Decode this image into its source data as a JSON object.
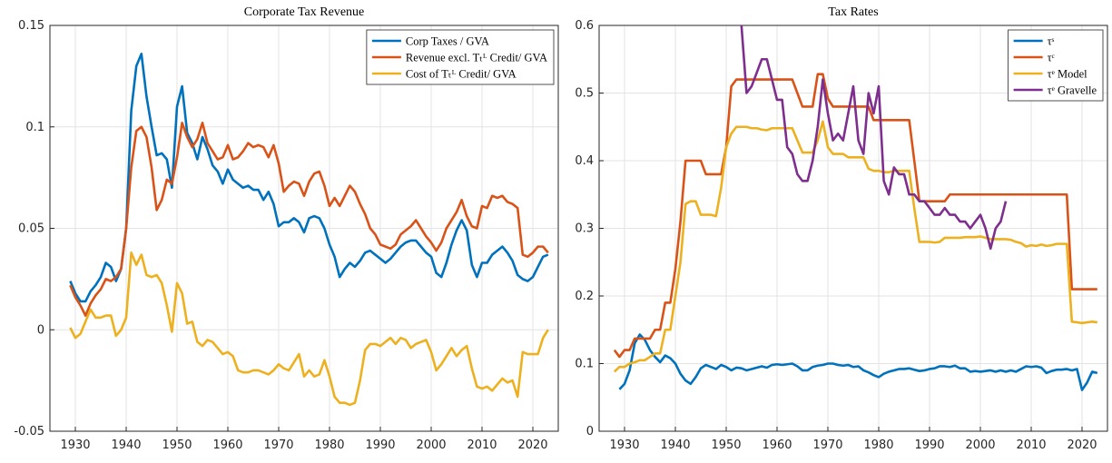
{
  "chart_data": [
    {
      "type": "line",
      "title": "Corporate Tax Revenue",
      "x": [
        1929,
        1930,
        1931,
        1932,
        1933,
        1934,
        1935,
        1936,
        1937,
        1938,
        1939,
        1940,
        1941,
        1942,
        1943,
        1944,
        1945,
        1946,
        1947,
        1948,
        1949,
        1950,
        1951,
        1952,
        1953,
        1954,
        1955,
        1956,
        1957,
        1958,
        1959,
        1960,
        1961,
        1962,
        1963,
        1964,
        1965,
        1966,
        1967,
        1968,
        1969,
        1970,
        1971,
        1972,
        1973,
        1974,
        1975,
        1976,
        1977,
        1978,
        1979,
        1980,
        1981,
        1982,
        1983,
        1984,
        1985,
        1986,
        1987,
        1988,
        1989,
        1990,
        1991,
        1992,
        1993,
        1994,
        1995,
        1996,
        1997,
        1998,
        1999,
        2000,
        2001,
        2002,
        2003,
        2004,
        2005,
        2006,
        2007,
        2008,
        2009,
        2010,
        2011,
        2012,
        2013,
        2014,
        2015,
        2016,
        2017,
        2018,
        2019,
        2020,
        2021,
        2022,
        2023
      ],
      "xlim": [
        1925,
        2025
      ],
      "xticks": [
        1930,
        1940,
        1950,
        1960,
        1970,
        1980,
        1990,
        2000,
        2010,
        2020
      ],
      "ylim": [
        -0.05,
        0.15
      ],
      "yticks": [
        -0.05,
        0,
        0.05,
        0.1,
        0.15
      ],
      "grid": true,
      "legend": "northeast",
      "series": [
        {
          "name": "Corp Taxes / GVA",
          "color": "#0072bd",
          "values": [
            0.024,
            0.018,
            0.014,
            0.014,
            0.019,
            0.022,
            0.026,
            0.033,
            0.031,
            0.024,
            0.03,
            0.05,
            0.108,
            0.13,
            0.136,
            0.115,
            0.1,
            0.086,
            0.087,
            0.084,
            0.07,
            0.11,
            0.12,
            0.097,
            0.092,
            0.084,
            0.095,
            0.089,
            0.081,
            0.078,
            0.072,
            0.079,
            0.074,
            0.072,
            0.07,
            0.071,
            0.069,
            0.069,
            0.064,
            0.068,
            0.062,
            0.051,
            0.053,
            0.053,
            0.055,
            0.053,
            0.048,
            0.055,
            0.056,
            0.055,
            0.05,
            0.042,
            0.036,
            0.026,
            0.03,
            0.033,
            0.031,
            0.034,
            0.038,
            0.039,
            0.037,
            0.035,
            0.033,
            0.035,
            0.038,
            0.041,
            0.043,
            0.044,
            0.044,
            0.041,
            0.038,
            0.036,
            0.028,
            0.026,
            0.033,
            0.042,
            0.049,
            0.054,
            0.049,
            0.032,
            0.026,
            0.033,
            0.033,
            0.037,
            0.039,
            0.041,
            0.038,
            0.034,
            0.027,
            0.025,
            0.024,
            0.026,
            0.031,
            0.036,
            0.037
          ]
        },
        {
          "name": "Revenue excl. Tₜᴸ Credit/ GVA",
          "color": "#d95319",
          "values": [
            0.022,
            0.016,
            0.012,
            0.007,
            0.013,
            0.017,
            0.02,
            0.025,
            0.024,
            0.026,
            0.03,
            0.05,
            0.08,
            0.098,
            0.1,
            0.095,
            0.08,
            0.059,
            0.064,
            0.074,
            0.072,
            0.085,
            0.102,
            0.095,
            0.09,
            0.094,
            0.102,
            0.092,
            0.088,
            0.084,
            0.085,
            0.091,
            0.084,
            0.085,
            0.088,
            0.092,
            0.09,
            0.091,
            0.09,
            0.085,
            0.091,
            0.082,
            0.068,
            0.071,
            0.073,
            0.072,
            0.066,
            0.073,
            0.077,
            0.078,
            0.071,
            0.061,
            0.065,
            0.061,
            0.066,
            0.071,
            0.068,
            0.062,
            0.057,
            0.05,
            0.047,
            0.042,
            0.041,
            0.04,
            0.042,
            0.047,
            0.049,
            0.051,
            0.054,
            0.05,
            0.046,
            0.043,
            0.039,
            0.043,
            0.05,
            0.054,
            0.058,
            0.064,
            0.056,
            0.051,
            0.05,
            0.061,
            0.06,
            0.066,
            0.065,
            0.066,
            0.063,
            0.062,
            0.06,
            0.037,
            0.036,
            0.038,
            0.041,
            0.041,
            0.038
          ]
        },
        {
          "name": "Cost of Tₜᴸ Credit/ GVA",
          "color": "#edb120",
          "values": [
            0.001,
            -0.004,
            -0.002,
            0.004,
            0.01,
            0.006,
            0.006,
            0.007,
            0.007,
            -0.003,
            0.0,
            0.006,
            0.038,
            0.032,
            0.037,
            0.027,
            0.026,
            0.027,
            0.023,
            0.012,
            -0.001,
            0.023,
            0.018,
            0.003,
            0.004,
            -0.006,
            -0.008,
            -0.005,
            -0.006,
            -0.009,
            -0.012,
            -0.011,
            -0.013,
            -0.02,
            -0.021,
            -0.021,
            -0.02,
            -0.02,
            -0.021,
            -0.022,
            -0.02,
            -0.017,
            -0.019,
            -0.02,
            -0.016,
            -0.012,
            -0.023,
            -0.02,
            -0.023,
            -0.022,
            -0.015,
            -0.023,
            -0.033,
            -0.036,
            -0.036,
            -0.037,
            -0.036,
            -0.025,
            -0.01,
            -0.007,
            -0.007,
            -0.008,
            -0.006,
            -0.004,
            -0.007,
            -0.004,
            -0.005,
            -0.009,
            -0.007,
            -0.006,
            -0.005,
            -0.011,
            -0.02,
            -0.017,
            -0.013,
            -0.009,
            -0.013,
            -0.01,
            -0.008,
            -0.019,
            -0.028,
            -0.029,
            -0.028,
            -0.03,
            -0.027,
            -0.024,
            -0.026,
            -0.025,
            -0.033,
            -0.011,
            -0.012,
            -0.012,
            -0.012,
            -0.004,
            0.0
          ]
        }
      ]
    },
    {
      "type": "line",
      "title": "Tax Rates",
      "x": [
        1928,
        1929,
        1930,
        1931,
        1932,
        1933,
        1934,
        1935,
        1936,
        1937,
        1938,
        1939,
        1940,
        1941,
        1942,
        1943,
        1944,
        1945,
        1946,
        1947,
        1948,
        1949,
        1950,
        1951,
        1952,
        1953,
        1954,
        1955,
        1956,
        1957,
        1958,
        1959,
        1960,
        1961,
        1962,
        1963,
        1964,
        1965,
        1966,
        1967,
        1968,
        1969,
        1970,
        1971,
        1972,
        1973,
        1974,
        1975,
        1976,
        1977,
        1978,
        1979,
        1980,
        1981,
        1982,
        1983,
        1984,
        1985,
        1986,
        1987,
        1988,
        1989,
        1990,
        1991,
        1992,
        1993,
        1994,
        1995,
        1996,
        1997,
        1998,
        1999,
        2000,
        2001,
        2002,
        2003,
        2004,
        2005,
        2006,
        2007,
        2008,
        2009,
        2010,
        2011,
        2012,
        2013,
        2014,
        2015,
        2016,
        2017,
        2018,
        2019,
        2020,
        2021,
        2022,
        2023
      ],
      "xlim": [
        1925,
        2025
      ],
      "xticks": [
        1930,
        1940,
        1950,
        1960,
        1970,
        1980,
        1990,
        2000,
        2010,
        2020
      ],
      "ylim": [
        0,
        0.6
      ],
      "yticks": [
        0,
        0.1,
        0.2,
        0.3,
        0.4,
        0.5,
        0.6
      ],
      "grid": true,
      "legend": "northeast",
      "series": [
        {
          "name": "τˢ",
          "color": "#0072bd",
          "values": [
            null,
            0.062,
            0.07,
            0.09,
            0.13,
            0.143,
            0.135,
            0.12,
            0.11,
            0.102,
            0.112,
            0.108,
            0.1,
            0.085,
            0.075,
            0.07,
            0.08,
            0.093,
            0.098,
            0.095,
            0.092,
            0.098,
            0.095,
            0.09,
            0.094,
            0.093,
            0.09,
            0.092,
            0.094,
            0.096,
            0.094,
            0.098,
            0.099,
            0.098,
            0.099,
            0.1,
            0.096,
            0.09,
            0.09,
            0.095,
            0.097,
            0.098,
            0.1,
            0.1,
            0.098,
            0.097,
            0.098,
            0.095,
            0.096,
            0.09,
            0.087,
            0.083,
            0.08,
            0.085,
            0.088,
            0.09,
            0.092,
            0.092,
            0.093,
            0.091,
            0.089,
            0.09,
            0.092,
            0.093,
            0.096,
            0.096,
            0.095,
            0.097,
            0.093,
            0.093,
            0.088,
            0.089,
            0.088,
            0.089,
            0.09,
            0.088,
            0.09,
            0.088,
            0.09,
            0.088,
            0.092,
            0.096,
            0.095,
            0.096,
            0.094,
            0.086,
            0.089,
            0.091,
            0.091,
            0.092,
            0.09,
            0.092,
            0.061,
            0.072,
            0.088,
            0.086
          ]
        },
        {
          "name": "τᶜ",
          "color": "#d95319",
          "values": [
            0.12,
            0.11,
            0.12,
            0.12,
            0.137,
            0.137,
            0.137,
            0.137,
            0.15,
            0.15,
            0.19,
            0.19,
            0.24,
            0.31,
            0.4,
            0.4,
            0.4,
            0.4,
            0.38,
            0.38,
            0.38,
            0.38,
            0.42,
            0.51,
            0.52,
            0.52,
            0.52,
            0.52,
            0.52,
            0.52,
            0.52,
            0.52,
            0.52,
            0.52,
            0.52,
            0.52,
            0.5,
            0.48,
            0.48,
            0.48,
            0.528,
            0.528,
            0.492,
            0.48,
            0.48,
            0.48,
            0.48,
            0.48,
            0.48,
            0.48,
            0.48,
            0.46,
            0.46,
            0.46,
            0.46,
            0.46,
            0.46,
            0.46,
            0.46,
            0.4,
            0.34,
            0.34,
            0.34,
            0.34,
            0.34,
            0.34,
            0.35,
            0.35,
            0.35,
            0.35,
            0.35,
            0.35,
            0.35,
            0.35,
            0.35,
            0.35,
            0.35,
            0.35,
            0.35,
            0.35,
            0.35,
            0.35,
            0.35,
            0.35,
            0.35,
            0.35,
            0.35,
            0.35,
            0.35,
            0.35,
            0.21,
            0.21,
            0.21,
            0.21,
            0.21,
            0.21
          ]
        },
        {
          "name": "τᵉ Model",
          "color": "#edb120",
          "values": [
            0.088,
            0.095,
            0.095,
            0.1,
            0.102,
            0.105,
            0.105,
            0.11,
            0.115,
            0.115,
            0.15,
            0.15,
            0.2,
            0.25,
            0.336,
            0.34,
            0.34,
            0.32,
            0.32,
            0.32,
            0.318,
            0.36,
            0.42,
            0.44,
            0.45,
            0.45,
            0.45,
            0.448,
            0.448,
            0.446,
            0.445,
            0.448,
            0.448,
            0.448,
            0.448,
            0.448,
            0.43,
            0.412,
            0.412,
            0.412,
            0.43,
            0.458,
            0.42,
            0.41,
            0.41,
            0.41,
            0.405,
            0.405,
            0.405,
            0.405,
            0.388,
            0.385,
            0.385,
            0.383,
            0.383,
            0.385,
            0.385,
            0.385,
            0.385,
            0.33,
            0.28,
            0.28,
            0.28,
            0.279,
            0.28,
            0.286,
            0.286,
            0.286,
            0.286,
            0.287,
            0.287,
            0.287,
            0.288,
            0.286,
            0.284,
            0.284,
            0.284,
            0.284,
            0.283,
            0.28,
            0.278,
            0.273,
            0.275,
            0.274,
            0.276,
            0.274,
            0.275,
            0.277,
            0.277,
            0.277,
            0.162,
            0.161,
            0.16,
            0.161,
            0.162,
            0.161
          ]
        },
        {
          "name": "τᵉ Gravelle",
          "color": "#7e2f8e",
          "values": [
            null,
            null,
            null,
            null,
            null,
            null,
            null,
            null,
            null,
            null,
            null,
            null,
            null,
            null,
            null,
            null,
            null,
            null,
            null,
            null,
            null,
            null,
            null,
            null,
            0.66,
            0.6,
            0.5,
            0.51,
            0.53,
            0.55,
            0.55,
            0.52,
            0.49,
            0.49,
            0.42,
            0.41,
            0.38,
            0.37,
            0.37,
            0.4,
            0.45,
            0.52,
            0.47,
            0.43,
            0.44,
            0.43,
            0.47,
            0.51,
            0.43,
            0.41,
            0.5,
            0.47,
            0.51,
            0.37,
            0.35,
            0.39,
            0.38,
            0.38,
            0.35,
            0.35,
            0.34,
            0.34,
            0.33,
            0.32,
            0.32,
            0.33,
            0.32,
            0.32,
            0.31,
            0.31,
            0.3,
            0.31,
            0.32,
            0.3,
            0.27,
            0.3,
            0.31,
            0.34,
            null,
            null,
            null,
            null,
            null,
            null,
            null,
            null,
            null,
            null,
            null,
            null,
            null,
            null,
            null,
            null,
            null,
            null
          ]
        }
      ]
    }
  ]
}
